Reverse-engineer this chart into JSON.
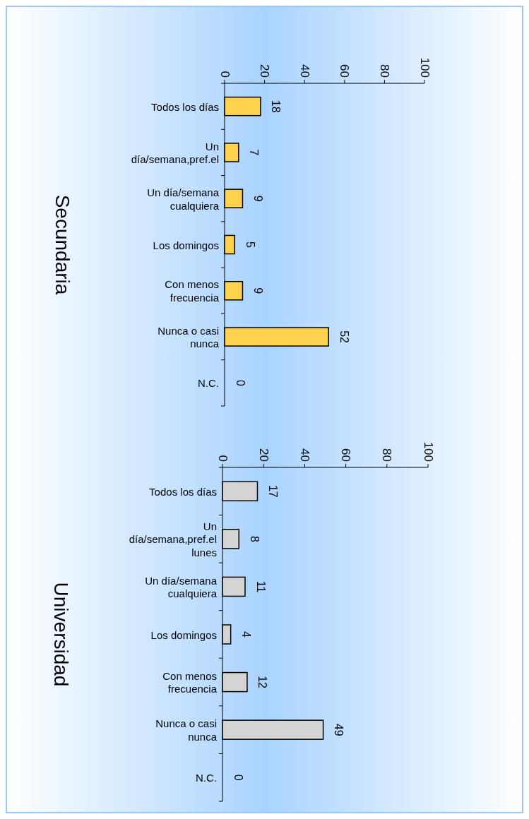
{
  "chart_data": [
    {
      "type": "bar",
      "orientation": "horizontal",
      "title": "Secundaria",
      "categories": [
        "Todos los días",
        "Un día/semana,pref.el",
        "Un día/semana cualquiera",
        "Los domingos",
        "Con menos frecuencia",
        "Nunca o casi nunca",
        "N.C."
      ],
      "values": [
        18,
        7,
        9,
        5,
        9,
        52,
        0
      ],
      "color": "#ffd24d",
      "xlim": [
        0,
        100
      ],
      "xticks": [
        0,
        20,
        40,
        60,
        80,
        100
      ],
      "data_labels": true
    },
    {
      "type": "bar",
      "orientation": "horizontal",
      "title": "Universidad",
      "categories": [
        "Todos los días",
        "Un día/semana,pref.el lunes",
        "Un día/semana cualquiera",
        "Los domingos",
        "Con menos frecuencia",
        "Nunca o casi nunca",
        "N.C."
      ],
      "values": [
        17,
        8,
        11,
        4,
        12,
        49,
        0
      ],
      "color": "#d4d4d4",
      "xlim": [
        0,
        100
      ],
      "xticks": [
        0,
        20,
        40,
        60,
        80,
        100
      ],
      "data_labels": true
    }
  ]
}
